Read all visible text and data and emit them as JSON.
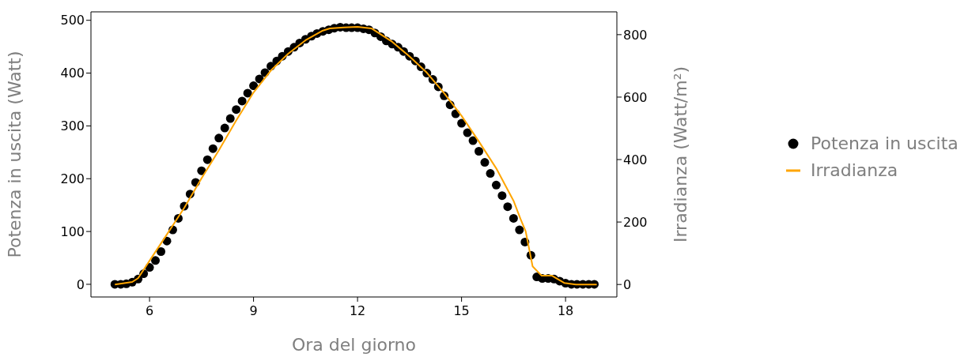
{
  "chart_data": {
    "type": "scatter",
    "xlabel": "Ora del giorno",
    "ylabel": "Potenza in uscita (Watt)",
    "y2label": "Irradianza (Watt/m²)",
    "xlim": [
      4.31,
      19.48
    ],
    "xticks": [
      6,
      9,
      12,
      15,
      18
    ],
    "ylim": [
      -24,
      516
    ],
    "yticks": [
      0,
      100,
      200,
      300,
      400,
      500
    ],
    "y2lim": [
      -40,
      873
    ],
    "y2ticks": [
      0,
      200,
      400,
      600,
      800
    ],
    "legend": "right",
    "series": [
      {
        "name": "Potenza in uscita",
        "marker": "circle",
        "color": "#000000",
        "x": [
          5,
          5.17,
          5.33,
          5.5,
          5.67,
          5.83,
          6,
          6.17,
          6.33,
          6.5,
          6.67,
          6.83,
          7,
          7.17,
          7.33,
          7.5,
          7.67,
          7.83,
          8,
          8.17,
          8.33,
          8.5,
          8.67,
          8.83,
          9,
          9.17,
          9.33,
          9.5,
          9.67,
          9.83,
          10,
          10.17,
          10.33,
          10.5,
          10.67,
          10.83,
          11,
          11.17,
          11.33,
          11.5,
          11.67,
          11.83,
          12,
          12.17,
          12.33,
          12.5,
          12.67,
          12.83,
          13,
          13.17,
          13.33,
          13.5,
          13.67,
          13.83,
          14,
          14.17,
          14.33,
          14.5,
          14.67,
          14.83,
          15,
          15.17,
          15.33,
          15.5,
          15.67,
          15.83,
          16,
          16.17,
          16.33,
          16.5,
          16.67,
          16.83,
          17,
          17.17,
          17.33,
          17.5,
          17.67,
          17.83,
          18,
          18.17,
          18.33,
          18.5,
          18.67,
          18.83
        ],
        "values": [
          0,
          0,
          1,
          4,
          10,
          20,
          32,
          45,
          62,
          82,
          103,
          125,
          148,
          171,
          193,
          215,
          236,
          257,
          277,
          296,
          314,
          331,
          347,
          362,
          376,
          389,
          401,
          413,
          423,
          432,
          441,
          449,
          457,
          464,
          470,
          475,
          479,
          482,
          485,
          487,
          486,
          486,
          486,
          484,
          482,
          476,
          469,
          461,
          455,
          449,
          441,
          432,
          423,
          412,
          400,
          388,
          374,
          357,
          340,
          323,
          305,
          287,
          272,
          252,
          231,
          210,
          188,
          168,
          147,
          125,
          103,
          80,
          55,
          14,
          11,
          11,
          10,
          6,
          2,
          0,
          0,
          0,
          0,
          0
        ]
      },
      {
        "name": "Irradianza",
        "type": "line",
        "marker": "none",
        "axis": "y2",
        "color": "#ffa500",
        "x": [
          5,
          5.5,
          5.67,
          6,
          6.5,
          7,
          7.5,
          8,
          8.5,
          9,
          9.5,
          10,
          10.5,
          11,
          11.2,
          11.6,
          12,
          12.4,
          13,
          13.5,
          14,
          14.5,
          15,
          15.5,
          16,
          16.5,
          16.7,
          16.85,
          17.05,
          17.31,
          17.61,
          17.96,
          18.3,
          18.9
        ],
        "values": [
          0,
          8,
          20,
          76,
          160,
          245,
          340,
          430,
          525,
          615,
          685,
          739,
          782,
          813,
          820,
          823,
          825,
          820,
          777,
          730,
          678,
          612,
          540,
          458,
          372,
          268,
          210,
          170,
          58,
          28,
          28,
          5,
          0,
          0
        ]
      }
    ]
  }
}
